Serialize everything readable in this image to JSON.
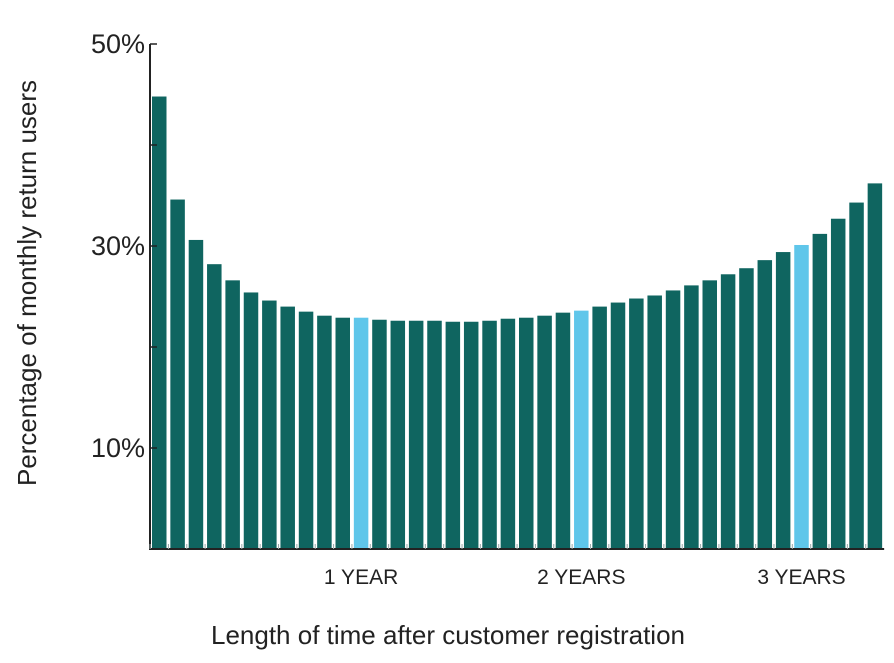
{
  "chart_data": {
    "type": "bar",
    "xlabel": "Length of time after customer registration",
    "ylabel": "Percentage of monthly return users",
    "ylim": [
      0,
      50
    ],
    "y_tick_labels": [
      {
        "value": 50,
        "label": "50%"
      },
      {
        "value": 30,
        "label": "30%"
      },
      {
        "value": 10,
        "label": "10%"
      }
    ],
    "x_tick_labels": [
      {
        "month": 12,
        "label": "1 YEAR"
      },
      {
        "month": 24,
        "label": "2 YEARS"
      },
      {
        "month": 36,
        "label": "3 YEARS"
      }
    ],
    "months": [
      1,
      2,
      3,
      4,
      5,
      6,
      7,
      8,
      9,
      10,
      11,
      12,
      13,
      14,
      15,
      16,
      17,
      18,
      19,
      20,
      21,
      22,
      23,
      24,
      25,
      26,
      27,
      28,
      29,
      30,
      31,
      32,
      33,
      34,
      35,
      36,
      37,
      38,
      39,
      40
    ],
    "values": [
      44.8,
      34.6,
      30.6,
      28.2,
      26.6,
      25.4,
      24.6,
      24.0,
      23.5,
      23.1,
      22.9,
      22.9,
      22.7,
      22.6,
      22.6,
      22.6,
      22.5,
      22.5,
      22.6,
      22.8,
      22.9,
      23.1,
      23.4,
      23.6,
      24.0,
      24.4,
      24.8,
      25.1,
      25.6,
      26.1,
      26.6,
      27.2,
      27.8,
      28.6,
      29.4,
      30.1,
      31.2,
      32.7,
      34.3,
      36.2
    ],
    "highlight_months": [
      12,
      24,
      36
    ],
    "colors": {
      "bar": "#0f6560",
      "highlight": "#5fc6ea",
      "axis": "#222222"
    },
    "grid": false,
    "legend": "none"
  }
}
